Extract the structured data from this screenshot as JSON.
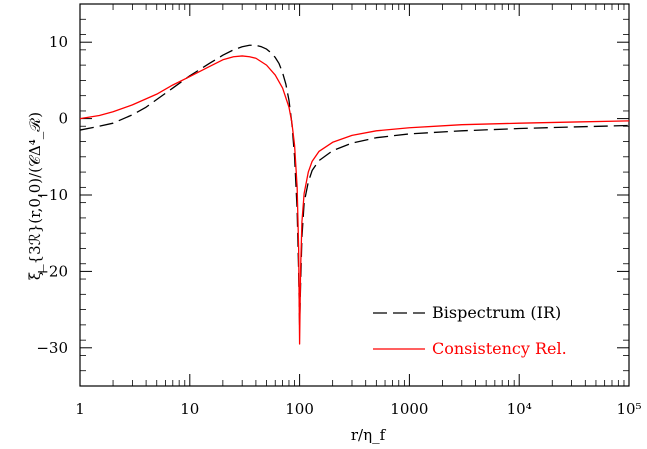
{
  "chart_data": {
    "type": "line",
    "xlabel": "r/η_f",
    "ylabel": "ξ_{3ℛ}(r,0,0)/(𝒞Δ⁴_ℛ)",
    "x_scale": "log",
    "xlim": [
      1,
      100000
    ],
    "ylim": [
      -35,
      15
    ],
    "x_ticks": [
      {
        "value": 1,
        "label": "1"
      },
      {
        "value": 10,
        "label": "10"
      },
      {
        "value": 100,
        "label": "100"
      },
      {
        "value": 1000,
        "label": "1000"
      },
      {
        "value": 10000,
        "label": "10⁴"
      },
      {
        "value": 100000,
        "label": "10⁵"
      }
    ],
    "y_ticks": [
      {
        "value": 10,
        "label": "10"
      },
      {
        "value": 0,
        "label": "0"
      },
      {
        "value": -10,
        "label": "−10"
      },
      {
        "value": -20,
        "label": "−20"
      },
      {
        "value": -30,
        "label": "−30"
      }
    ],
    "legend_position": "bottom-right",
    "grid": false,
    "series": [
      {
        "name": "Bispectrum (IR)",
        "color": "#000000",
        "style": "dashed",
        "points": [
          [
            1,
            -1.5
          ],
          [
            1.5,
            -1.0
          ],
          [
            2,
            -0.6
          ],
          [
            3,
            0.5
          ],
          [
            4,
            1.5
          ],
          [
            5,
            2.5
          ],
          [
            7,
            4.0
          ],
          [
            10,
            5.6
          ],
          [
            15,
            7.2
          ],
          [
            20,
            8.3
          ],
          [
            25,
            9.0
          ],
          [
            30,
            9.4
          ],
          [
            35,
            9.6
          ],
          [
            40,
            9.6
          ],
          [
            45,
            9.4
          ],
          [
            50,
            9.1
          ],
          [
            55,
            8.6
          ],
          [
            60,
            8.0
          ],
          [
            65,
            7.2
          ],
          [
            70,
            6.0
          ],
          [
            75,
            4.5
          ],
          [
            80,
            2.4
          ],
          [
            85,
            -0.6
          ],
          [
            90,
            -5.0
          ],
          [
            95,
            -12.0
          ],
          [
            98,
            -20.0
          ],
          [
            100,
            -27.0
          ],
          [
            102,
            -22.0
          ],
          [
            105,
            -15.5
          ],
          [
            110,
            -11.0
          ],
          [
            120,
            -8.3
          ],
          [
            130,
            -6.8
          ],
          [
            150,
            -5.5
          ],
          [
            200,
            -4.2
          ],
          [
            300,
            -3.2
          ],
          [
            500,
            -2.5
          ],
          [
            1000,
            -2.0
          ],
          [
            3000,
            -1.6
          ],
          [
            10000,
            -1.3
          ],
          [
            30000,
            -1.1
          ],
          [
            100000,
            -0.9
          ]
        ]
      },
      {
        "name": "Consistency Rel.",
        "color": "#ff0000",
        "style": "solid",
        "points": [
          [
            1,
            0.0
          ],
          [
            1.5,
            0.4
          ],
          [
            2,
            0.9
          ],
          [
            3,
            1.8
          ],
          [
            5,
            3.2
          ],
          [
            7,
            4.4
          ],
          [
            10,
            5.5
          ],
          [
            15,
            6.8
          ],
          [
            20,
            7.7
          ],
          [
            25,
            8.1
          ],
          [
            30,
            8.2
          ],
          [
            35,
            8.1
          ],
          [
            40,
            7.9
          ],
          [
            50,
            7.0
          ],
          [
            60,
            5.7
          ],
          [
            70,
            4.0
          ],
          [
            80,
            1.5
          ],
          [
            85,
            -0.5
          ],
          [
            90,
            -3.5
          ],
          [
            95,
            -9.0
          ],
          [
            98,
            -17.0
          ],
          [
            100,
            -29.5
          ],
          [
            102,
            -20.0
          ],
          [
            105,
            -13.5
          ],
          [
            110,
            -9.8
          ],
          [
            120,
            -7.0
          ],
          [
            130,
            -5.6
          ],
          [
            150,
            -4.3
          ],
          [
            200,
            -3.1
          ],
          [
            300,
            -2.2
          ],
          [
            500,
            -1.6
          ],
          [
            1000,
            -1.2
          ],
          [
            3000,
            -0.8
          ],
          [
            10000,
            -0.6
          ],
          [
            30000,
            -0.45
          ],
          [
            100000,
            -0.3
          ]
        ]
      }
    ]
  }
}
